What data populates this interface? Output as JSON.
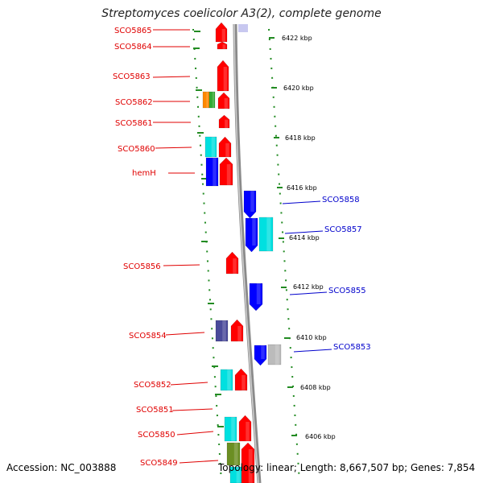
{
  "title": "Streptomyces coelicolor A3(2), complete genome",
  "footer": {
    "accession": "Accession: NC_003888",
    "topology": "Topology: linear; Length: 8,667,507 bp; Genes: 7,854"
  },
  "scale_labels": [
    "6422 kbp",
    "6420 kbp",
    "6418 kbp",
    "6416 kbp",
    "6414 kbp",
    "6412 kbp",
    "6410 kbp",
    "6408 kbp",
    "6406 kbp"
  ],
  "left_labels": [
    "SCO5865",
    "SCO5864",
    "SCO5863",
    "SCO5862",
    "SCO5861",
    "SCO5860",
    "hemH",
    "SCO5856",
    "SCO5854",
    "SCO5852",
    "SCO5851",
    "SCO5850",
    "SCO5849"
  ],
  "right_labels": [
    "SCO5858",
    "SCO5857",
    "SCO5855",
    "SCO5853"
  ],
  "colors": {
    "forward": "#ff0000",
    "blue": "#0000ff",
    "cyan": "#00e0e0",
    "navy": "#4a4a9a",
    "orange": "#ff8800",
    "green": "#33aa33",
    "olive": "#6b8e23",
    "grey": "#bbbbbb",
    "ticks": "#228b22",
    "left_label": "#e00000",
    "right_label": "#0000cc"
  }
}
